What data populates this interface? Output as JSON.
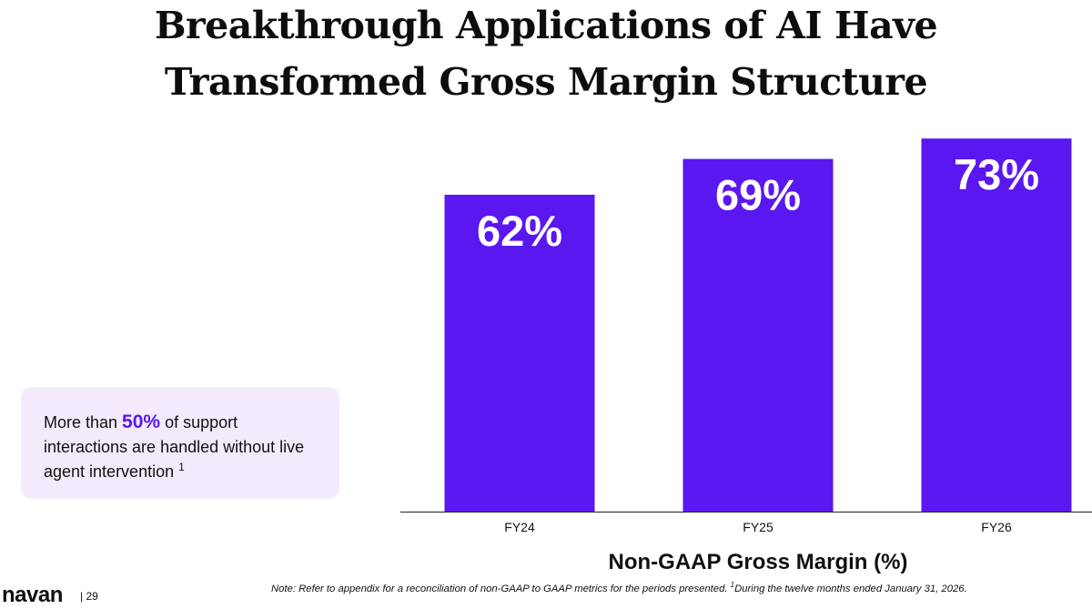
{
  "header": {
    "title_line1": "Breakthrough Applications of AI Have",
    "title_line2": "Transformed Gross Margin Structure"
  },
  "chart_data": {
    "type": "bar",
    "categories": [
      "FY24",
      "FY25",
      "FY26"
    ],
    "values": [
      62,
      69,
      73
    ],
    "data_labels": [
      "62%",
      "69%",
      "73%"
    ],
    "title": "",
    "xlabel": "Non-GAAP Gross Margin (%)",
    "ylabel": "",
    "ylim": [
      0,
      83
    ],
    "grid": false,
    "bar_color": "#5b17f0",
    "label_color": "#ffffff"
  },
  "callout": {
    "text_before": "More than ",
    "highlight": "50%",
    "text_after": " of support interactions are handled without live agent intervention",
    "superscript": "1",
    "highlight_color": "#5b17f0",
    "background": "#f3eafc"
  },
  "footer": {
    "logo": "navan",
    "page_number": "| 29",
    "note_main": "Note: Refer to appendix for a reconciliation of non-GAAP to GAAP metrics for the periods presented. ",
    "note_sup": "1",
    "note_tail": "During the twelve months ended January 31, 2026."
  }
}
